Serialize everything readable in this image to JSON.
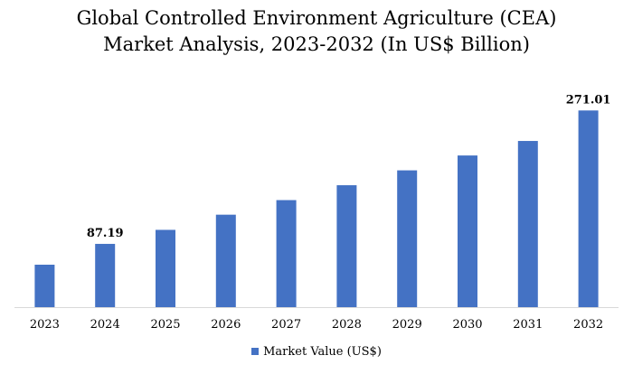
{
  "chart_data": {
    "type": "bar",
    "title": "Global Controlled Environment Agriculture (CEA)",
    "subtitle": "Market Analysis, 2023-2032 (In US$ Billion)",
    "categories": [
      "2023",
      "2024",
      "2025",
      "2026",
      "2027",
      "2028",
      "2029",
      "2030",
      "2031",
      "2032"
    ],
    "series": [
      {
        "name": "Market Value (US$)",
        "color": "#4472c4",
        "values": [
          58.5,
          87.19,
          106.5,
          127.4,
          147.5,
          168.0,
          188.5,
          209.0,
          229.0,
          271.01
        ]
      }
    ],
    "data_labels": [
      {
        "index": 1,
        "text": "87.19"
      },
      {
        "index": 9,
        "text": "271.01"
      }
    ],
    "ylim": [
      0,
      300
    ],
    "grid": false,
    "legend_position": "bottom"
  }
}
